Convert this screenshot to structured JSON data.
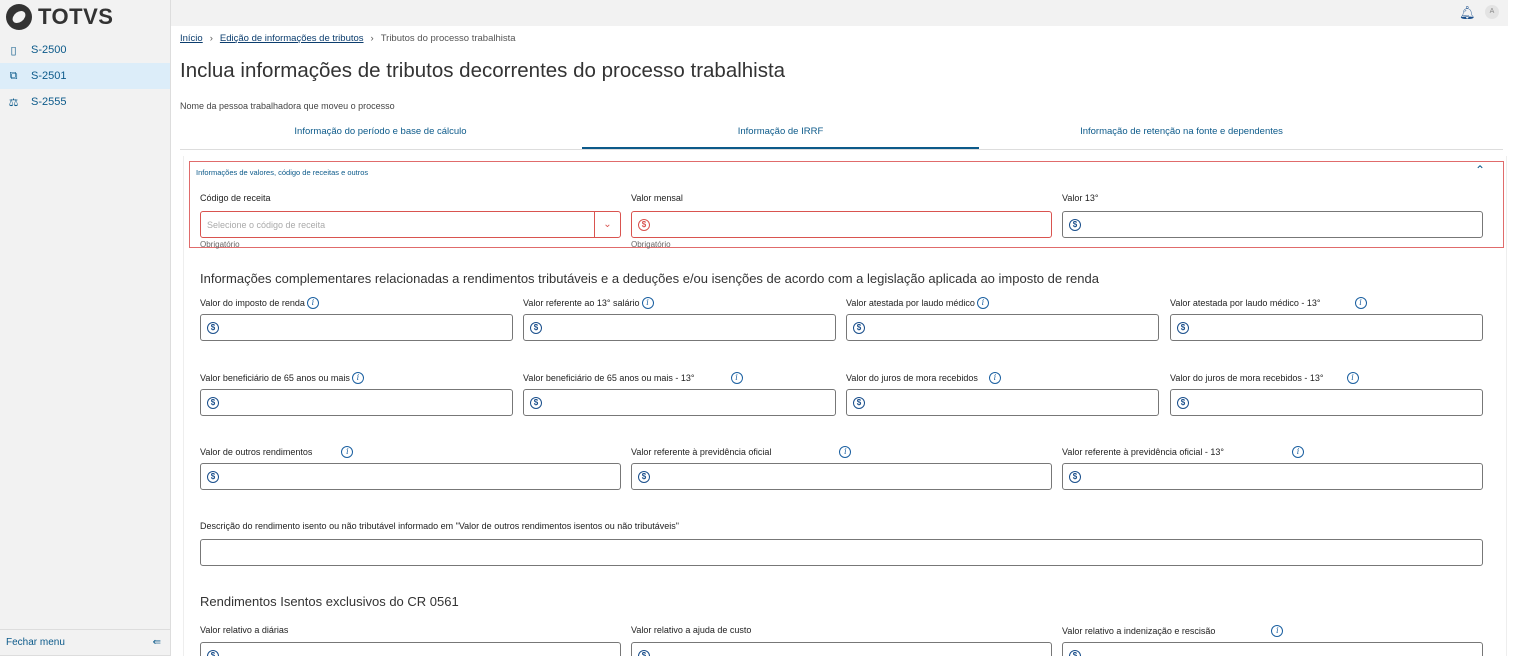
{
  "sidebar": {
    "logo": "TOTVS",
    "items": [
      {
        "label": "S-2500",
        "icon": "document-icon"
      },
      {
        "label": "S-2501",
        "icon": "documents-copy-icon"
      },
      {
        "label": "S-2555",
        "icon": "scale-icon"
      }
    ],
    "close_menu": "Fechar menu"
  },
  "header": {
    "bell_icon": "bell-icon",
    "avatar": "A"
  },
  "breadcrumb": [
    "Início",
    "Edição de informações de tributos",
    "Tributos do processo trabalhista"
  ],
  "page": {
    "title": "Inclua informações de tributos decorrentes do processo trabalhista",
    "subtitle": "Nome da pessoa trabalhadora que moveu o processo"
  },
  "tabs": [
    {
      "label": "Informação do período e base de cálculo"
    },
    {
      "label": "Informação de IRRF",
      "active": true
    },
    {
      "label": "Informação de retenção na fonte e dependentes"
    }
  ],
  "section1": {
    "title": "Informações de valores, código de receitas e outros",
    "codigo": {
      "label": "Código de receita",
      "placeholder": "Selecione o código de receita",
      "hint": "Obrigatório"
    },
    "mensal": {
      "label": "Valor mensal",
      "hint": "Obrigatório"
    },
    "decimo": {
      "label": "Valor 13°"
    }
  },
  "section2": {
    "title": "Informações complementares relacionadas a rendimentos tributáveis e a deduções e/ou isenções de acordo com a legislação aplicada ao imposto de renda",
    "fields": [
      "Valor do imposto de renda",
      "Valor referente ao 13° salário",
      "Valor atestada por laudo médico",
      "Valor atestada por laudo médico - 13°",
      "Valor beneficiário de 65 anos ou mais",
      "Valor beneficiário de 65 anos ou mais - 13°",
      "Valor do juros de mora recebidos",
      "Valor do juros de mora recebidos - 13°",
      "Valor de outros rendimentos",
      "Valor referente à previdência oficial",
      "Valor referente à previdência oficial - 13°"
    ],
    "descricao": "Descrição do rendimento isento ou não tributável informado em \"Valor de outros rendimentos isentos ou não tributáveis\""
  },
  "section3": {
    "title": "Rendimentos Isentos exclusivos do CR 0561",
    "fields": [
      "Valor relativo a diárias",
      "Valor relativo a ajuda de custo",
      "Valor relativo a indenização e rescisão"
    ]
  },
  "currency_symbol": "$",
  "colors": {
    "accent": "#0c5a8a",
    "error": "#d9534f",
    "active_nav": "#dcedf9"
  }
}
